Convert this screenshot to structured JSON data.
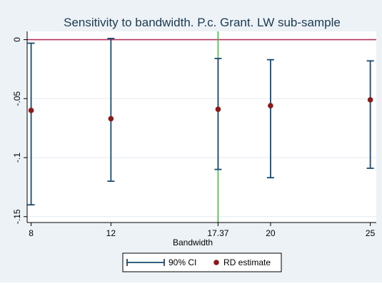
{
  "chart_data": {
    "type": "scatter",
    "title": "Sensitivity to bandwidth. P.c. Grant. LW sub-sample",
    "xlabel": "Bandwidth",
    "ylabel": "",
    "x_ticks": [
      8,
      12,
      17.37,
      20,
      25
    ],
    "x_tick_labels": [
      "8",
      "12",
      "17.37",
      "20",
      "25"
    ],
    "y_ticks": [
      0,
      -0.05,
      -0.1,
      -0.15
    ],
    "y_tick_labels": [
      "0",
      "-.05",
      "-.1",
      "-.15"
    ],
    "xlim": [
      7.8,
      25.3
    ],
    "ylim": [
      -0.155,
      0.007
    ],
    "reference_lines": {
      "y": 0,
      "y_color": "#b5335f",
      "x": 17.37,
      "x_color": "#3fbf3f"
    },
    "grid": "horizontal",
    "legend_position": "bottom",
    "legend": [
      {
        "label": "90% CI",
        "kind": "capped-line",
        "color": "#1a4a6e"
      },
      {
        "label": "RD estimate",
        "kind": "dot",
        "color": "#8b1a1a"
      }
    ],
    "series": [
      {
        "name": "RD estimate",
        "color": "#8b1a1a",
        "points": [
          {
            "x": 8,
            "y": -0.06
          },
          {
            "x": 12,
            "y": -0.067
          },
          {
            "x": 17.37,
            "y": -0.059
          },
          {
            "x": 20,
            "y": -0.056
          },
          {
            "x": 25,
            "y": -0.051
          }
        ]
      },
      {
        "name": "90% CI",
        "color": "#1a4a6e",
        "intervals": [
          {
            "x": 8,
            "low": -0.14,
            "high": -0.003
          },
          {
            "x": 12,
            "low": -0.12,
            "high": 0.001
          },
          {
            "x": 17.37,
            "low": -0.11,
            "high": -0.016
          },
          {
            "x": 20,
            "low": -0.117,
            "high": -0.017
          },
          {
            "x": 25,
            "low": -0.109,
            "high": -0.018
          }
        ]
      }
    ]
  }
}
